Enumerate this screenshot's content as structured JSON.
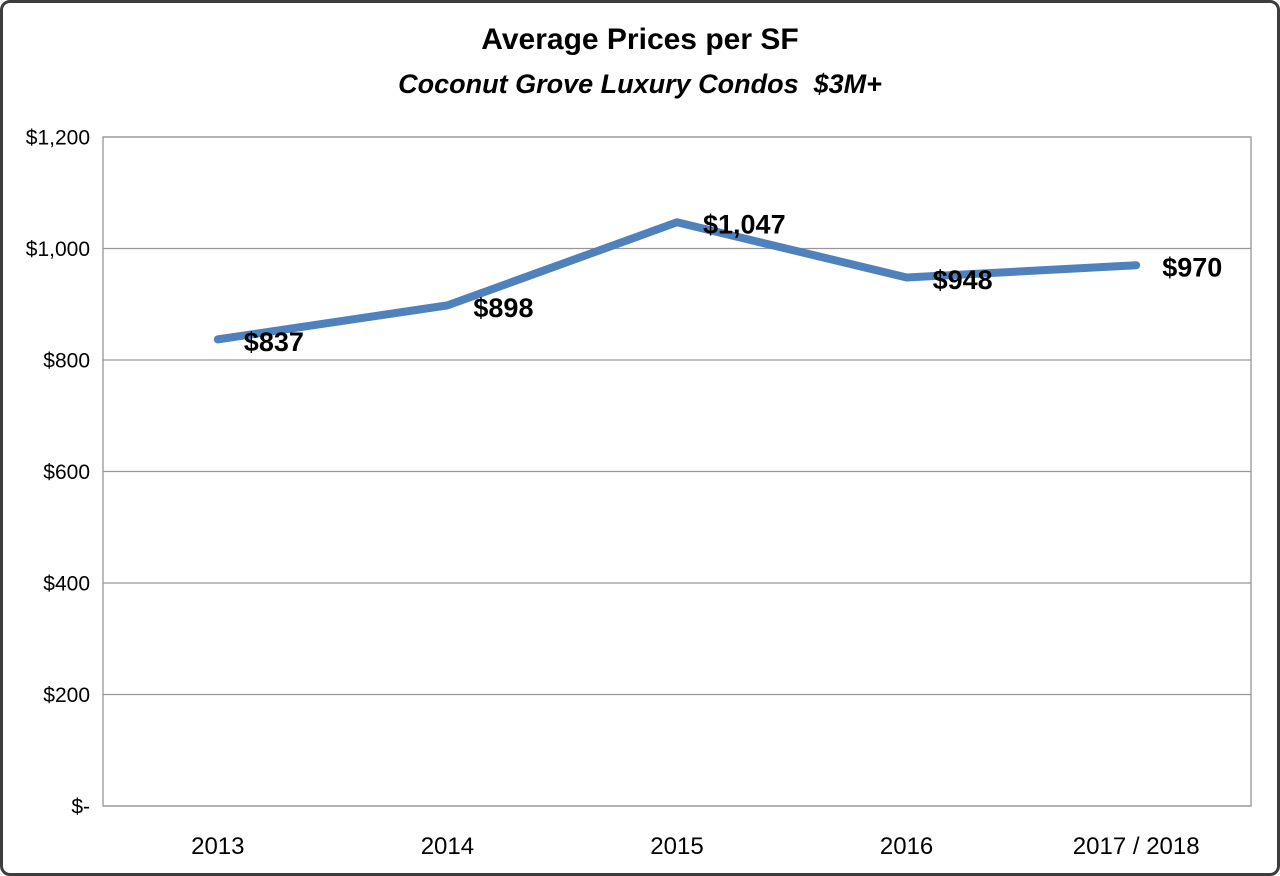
{
  "chart_data": {
    "type": "line",
    "title": "Average Prices per SF",
    "subtitle": "Coconut Grove Luxury Condos  $3M+",
    "categories": [
      "2013",
      "2014",
      "2015",
      "2016",
      "2017 / 2018"
    ],
    "series": [
      {
        "values": [
          837,
          898,
          1047,
          948,
          970
        ],
        "point_labels": [
          "$837",
          "$898",
          "$1,047",
          "$948",
          "$970"
        ]
      }
    ],
    "ylim": [
      0,
      1200
    ],
    "yticks": [
      {
        "value": 0,
        "label": "$-"
      },
      {
        "value": 200,
        "label": "$200"
      },
      {
        "value": 400,
        "label": "$400"
      },
      {
        "value": 600,
        "label": "$600"
      },
      {
        "value": 800,
        "label": "$800"
      },
      {
        "value": 1000,
        "label": "$1,000"
      },
      {
        "value": 1200,
        "label": "$1,200"
      }
    ],
    "grid": "horizontal",
    "legend": "none",
    "xlabel": "",
    "ylabel": "",
    "colors": {
      "line": "#4F81BD",
      "gridline": "#969696",
      "plot_border": "#969696",
      "text": "#000000",
      "frame_border": "#3D3D3D",
      "background": "#FFFFFF"
    }
  }
}
